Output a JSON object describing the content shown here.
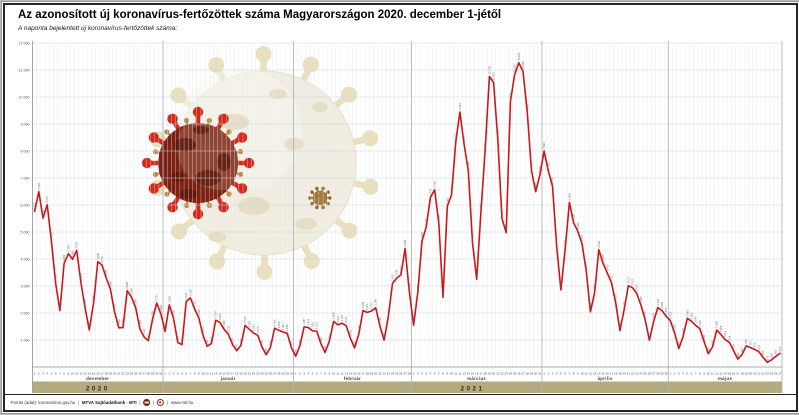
{
  "header": {
    "title": "Az azonosított új koronavírus-fertőzöttek száma Magyarországon 2020. december 1-jétől",
    "subtitle": "A naponta bejelentett új koronavírus-fertőzöttek száma:"
  },
  "chart_data": {
    "type": "line",
    "title": "Az azonosított új koronavírus-fertőzöttek száma Magyarországon 2020. december 1-jétől",
    "x_axis": {
      "start_date": "2020-12-01",
      "end_date": "2021-05-27",
      "tick_unit": "day"
    },
    "y_axis": {
      "min": 0,
      "max": 12000,
      "step": 1000,
      "tick_labels": [
        "1 000",
        "2 000",
        "3 000",
        "4 000",
        "5 000",
        "6 000",
        "7 000",
        "8 000",
        "9 000",
        "10 000",
        "11 000",
        "12 000"
      ]
    },
    "months": [
      {
        "label": "december",
        "year": "2020",
        "days": 31
      },
      {
        "label": "január",
        "year": "2021",
        "days": 31
      },
      {
        "label": "február",
        "year": "2021",
        "days": 28
      },
      {
        "label": "március",
        "year": "2021",
        "days": 31
      },
      {
        "label": "április",
        "year": "2021",
        "days": 30
      },
      {
        "label": "május",
        "year": "2021",
        "days": 27
      }
    ],
    "years": [
      {
        "label": "2020",
        "from_day": 0,
        "to_day": 31
      },
      {
        "label": "2021",
        "from_day": 31,
        "to_day": 178
      }
    ],
    "values": [
      5761,
      6495,
      5513,
      6007,
      4659,
      3089,
      2088,
      3829,
      4197,
      3989,
      4321,
      3132,
      2184,
      1371,
      2371,
      3899,
      3776,
      3296,
      2887,
      2031,
      1452,
      1459,
      2828,
      2584,
      2194,
      1408,
      1111,
      973,
      1755,
      2371,
      1968,
      1316,
      2299,
      1792,
      907,
      831,
      2421,
      2560,
      2153,
      1818,
      1177,
      766,
      873,
      1734,
      1650,
      1398,
      1216,
      837,
      602,
      800,
      1546,
      1397,
      1257,
      1170,
      740,
      455,
      723,
      1436,
      1358,
      1297,
      1248,
      704,
      398,
      787,
      1487,
      1462,
      1336,
      1333,
      864,
      536,
      964,
      1688,
      1563,
      1621,
      1531,
      1062,
      706,
      1219,
      2088,
      2024,
      2073,
      2196,
      1518,
      995,
      1862,
      3093,
      3291,
      3412,
      4385,
      2764,
      1549,
      2764,
      4668,
      5178,
      6278,
      6566,
      5325,
      2583,
      5953,
      6369,
      8312,
      9444,
      8245,
      7269,
      4609,
      3250,
      5731,
      7999,
      10759,
      10533,
      8429,
      5494,
      4975,
      9835,
      10825,
      11265,
      10946,
      9426,
      7263,
      6494,
      7120,
      7999,
      7263,
      6700,
      4456,
      2855,
      4371,
      6098,
      5339,
      5030,
      4572,
      3571,
      2043,
      2743,
      4346,
      3845,
      3477,
      3117,
      2376,
      1350,
      2112,
      3011,
      2937,
      2727,
      2295,
      1745,
      993,
      1676,
      2204,
      2089,
      1876,
      1714,
      1255,
      687,
      1120,
      1805,
      1693,
      1540,
      1416,
      942,
      492,
      740,
      1368,
      1205,
      1011,
      914,
      606,
      292,
      461,
      785,
      717,
      652,
      571,
      356,
      175,
      264,
      391,
      503
    ],
    "grid": true,
    "legend": "none",
    "colors": {
      "line": "#cc1619",
      "grid_major": "#ccd3dc",
      "grid_minor": "#e3e7ee",
      "axis": "#9aa5b2",
      "band": "#b5aa7d",
      "band_text": "#2e2a1c",
      "label": "#666666",
      "virus_cream_body": "#f1ede0",
      "virus_cream_spike": "#e9dfba",
      "virus_cream_blob": "#e3d9bc",
      "virus_red_body": "#7e2012",
      "virus_red_spike": "#d22b1b",
      "virus_red_spot": "#55130a",
      "virus_gold": "#b98c4c",
      "virus_small": "#a87c3e"
    }
  },
  "icons": {
    "illustration": "coronavirus",
    "mtva_logo": "circled-bar",
    "mti_logo": "red-ring-dot"
  },
  "footer": {
    "source": "Forrás (adat): koronavirus.gov.hu",
    "brand": "MTVA Sajtóadatbank · MTI",
    "site": "www.mti.hu"
  }
}
